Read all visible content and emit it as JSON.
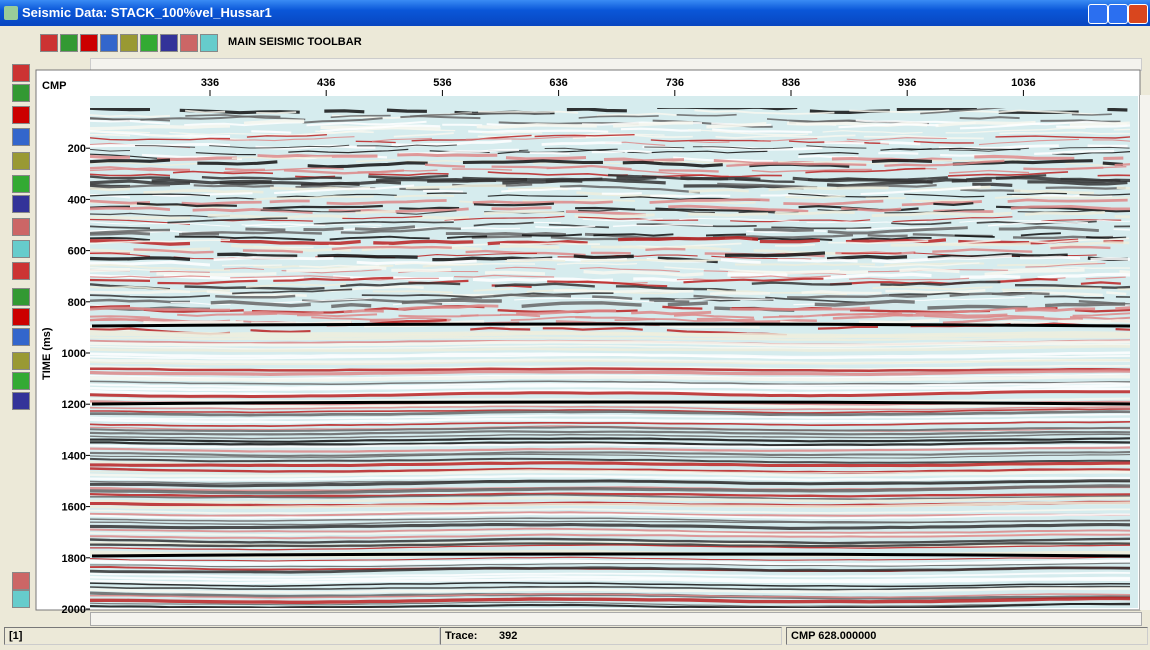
{
  "window": {
    "title": "Seismic Data: STACK_100%vel_Hussar1"
  },
  "toolbar": {
    "label": "MAIN SEISMIC TOOLBAR"
  },
  "display": {
    "x_label": "CMP",
    "x_ticks": [
      "336",
      "436",
      "536",
      "636",
      "736",
      "836",
      "936",
      "1036"
    ],
    "y_label": "TIME (ms)",
    "y_ticks": [
      "200",
      "400",
      "600",
      "800",
      "1000",
      "1200",
      "1400",
      "1600",
      "1800",
      "2000"
    ]
  },
  "status": {
    "panel": "[1]",
    "trace_label": "Trace:",
    "trace_value": "392",
    "cmp": "CMP 628.000000"
  }
}
